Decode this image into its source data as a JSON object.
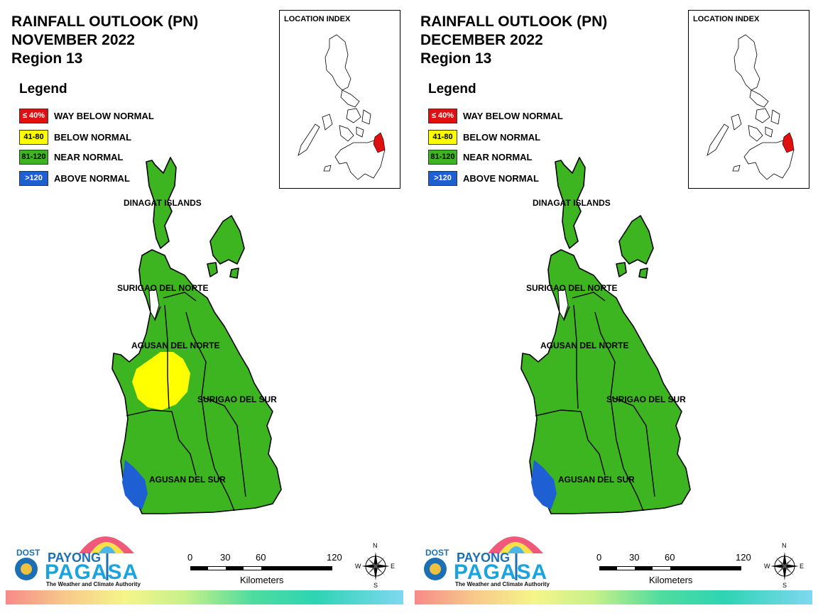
{
  "panels": [
    {
      "title_line1": "RAINFALL OUTLOOK (PN)",
      "title_line2": "NOVEMBER 2022",
      "title_line3": "Region 13",
      "has_yellow_zone": true
    },
    {
      "title_line1": "RAINFALL OUTLOOK (PN)",
      "title_line2": "DECEMBER 2022",
      "title_line3": "Region 13",
      "has_yellow_zone": false
    }
  ],
  "legend": {
    "title": "Legend",
    "items": [
      {
        "range": "≤ 40%",
        "label": "WAY BELOW NORMAL",
        "color": "#e01010",
        "text_color": "#ffffff"
      },
      {
        "range": "41-80",
        "label": "BELOW NORMAL",
        "color": "#ffff00",
        "text_color": "#000000"
      },
      {
        "range": "81-120",
        "label": "NEAR NORMAL",
        "color": "#3cb521",
        "text_color": "#000000"
      },
      {
        "range": ">120",
        "label": "ABOVE NORMAL",
        "color": "#1f5fd4",
        "text_color": "#ffffff"
      }
    ]
  },
  "location_index": {
    "title": "LOCATION INDEX",
    "highlight_color": "#e01010"
  },
  "provinces": {
    "dinagat": "DINAGAT ISLANDS",
    "surigao_norte": "SURIGAO DEL NORTE",
    "agusan_norte": "AGUSAN DEL NORTE",
    "surigao_sur": "SURIGAO DEL SUR",
    "agusan_sur": "AGUSAN DEL SUR"
  },
  "colors": {
    "near_normal": "#3cb521",
    "below_normal": "#ffff00",
    "above_normal": "#1f5fd4"
  },
  "logo": {
    "dost": "DOST",
    "payong": "PAYONG",
    "pagasa": "PAGASA",
    "tagline": "The Weather and Climate Authority"
  },
  "scale": {
    "ticks": [
      "0",
      "30",
      "60",
      "120"
    ],
    "unit": "Kilometers"
  },
  "compass": {
    "n": "N",
    "s": "S",
    "e": "E",
    "w": "W"
  }
}
